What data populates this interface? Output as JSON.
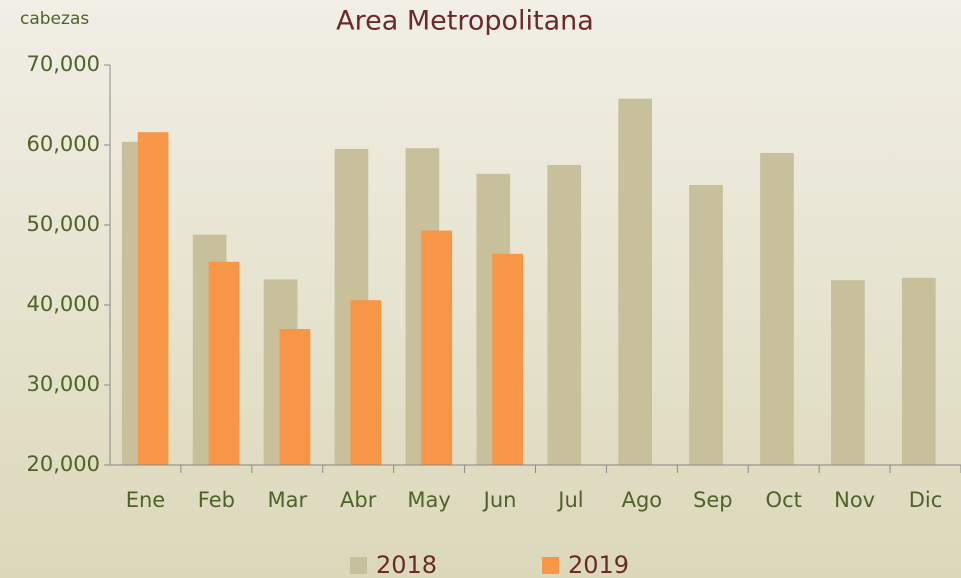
{
  "chart_data": {
    "type": "bar",
    "title": "Area Metropolitana",
    "y_axis_label": "cabezas",
    "categories": [
      "Ene",
      "Feb",
      "Mar",
      "Abr",
      "May",
      "Jun",
      "Jul",
      "Ago",
      "Sep",
      "Oct",
      "Nov",
      "Dic"
    ],
    "series": [
      {
        "name": "2018",
        "color": "#c8c09a",
        "values": [
          60400,
          48800,
          43200,
          59500,
          59600,
          56400,
          57500,
          65800,
          55000,
          59000,
          43100,
          43400
        ]
      },
      {
        "name": "2019",
        "color": "#f79646",
        "values": [
          61600,
          45400,
          37000,
          40600,
          49300,
          46400,
          null,
          null,
          null,
          null,
          null,
          null
        ]
      }
    ],
    "ylim": [
      20000,
      70000
    ],
    "yticks": [
      {
        "value": 20000,
        "label": "20,000"
      },
      {
        "value": 30000,
        "label": "30,000"
      },
      {
        "value": 40000,
        "label": "40,000"
      },
      {
        "value": 50000,
        "label": "50,000"
      },
      {
        "value": 60000,
        "label": "60,000"
      },
      {
        "value": 70000,
        "label": "70,000"
      }
    ],
    "grid": false,
    "legend": "bottom"
  }
}
